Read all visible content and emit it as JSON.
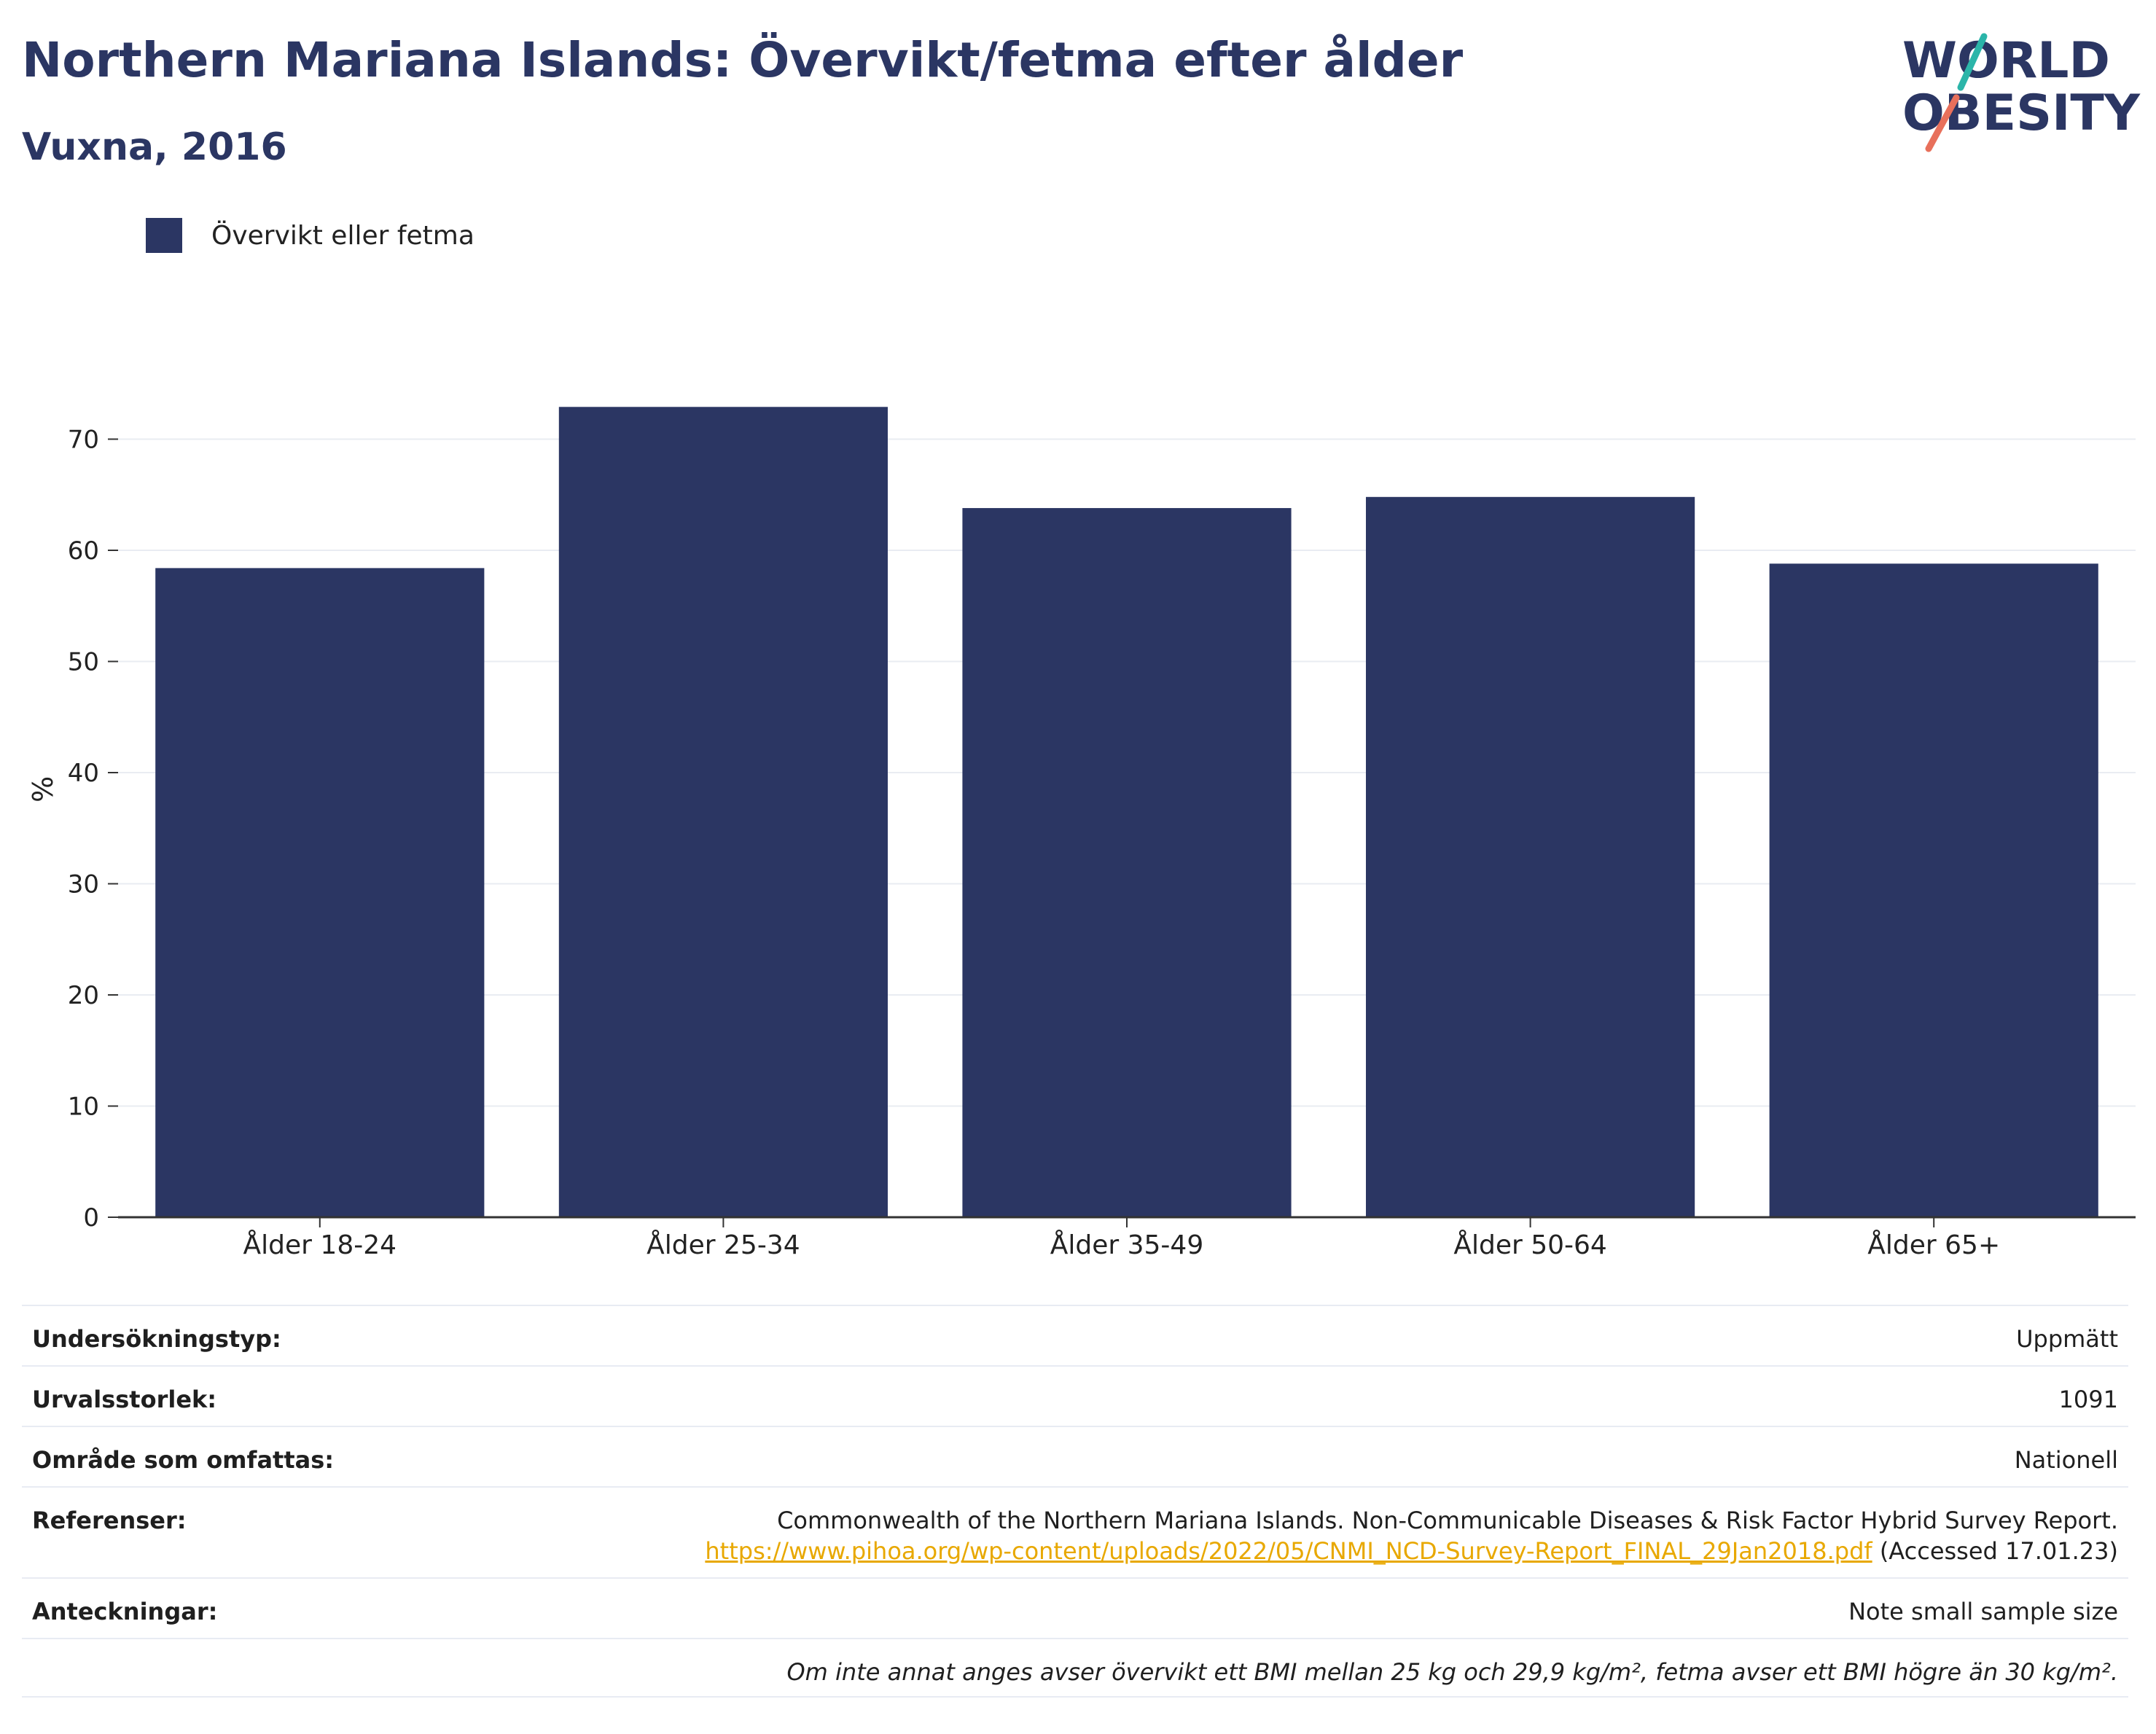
{
  "title": "Northern Mariana Islands: Övervikt/fetma efter ålder",
  "subtitle": "Vuxna, 2016",
  "logo": {
    "line1": "WORLD",
    "line2": "OBESITY"
  },
  "legend": {
    "label": "Övervikt eller fetma"
  },
  "colors": {
    "bar": "#2b3663",
    "title": "#2b3663",
    "link": "#e8a800",
    "logo_teal": "#2bb5a9",
    "logo_coral": "#e8705b"
  },
  "chart_data": {
    "type": "bar",
    "categories": [
      "Ålder 18-24",
      "Ålder 25-34",
      "Ålder 35-49",
      "Ålder 50-64",
      "Ålder 65+"
    ],
    "series": [
      {
        "name": "Övervikt eller fetma",
        "values": [
          58.4,
          72.9,
          63.8,
          64.8,
          58.8
        ]
      }
    ],
    "ylabel": "%",
    "ylim": [
      0,
      80
    ],
    "yticks": [
      0,
      10,
      20,
      30,
      40,
      50,
      60,
      70
    ],
    "grid": true,
    "legend_position": "top-left"
  },
  "info": {
    "survey_type": {
      "label": "Undersökningstyp:",
      "value": "Uppmätt"
    },
    "sample_size": {
      "label": "Urvalsstorlek:",
      "value": "1091"
    },
    "coverage": {
      "label": "Område som omfattas:",
      "value": "Nationell"
    },
    "references": {
      "label": "Referenser:",
      "text": "Commonwealth of the Northern Mariana Islands. Non-Communicable Diseases & Risk Factor Hybrid Survey Report.",
      "link": "https://www.pihoa.org/wp-content/uploads/2022/05/CNMI_NCD-Survey-Report_FINAL_29Jan2018.pdf",
      "accessed": " (Accessed 17.01.23)"
    },
    "notes": {
      "label": "Anteckningar:",
      "value": "Note small sample size"
    },
    "footnote": "Om inte annat anges avser övervikt ett BMI mellan 25 kg och 29,9 kg/m², fetma avser ett BMI högre än 30 kg/m²."
  }
}
